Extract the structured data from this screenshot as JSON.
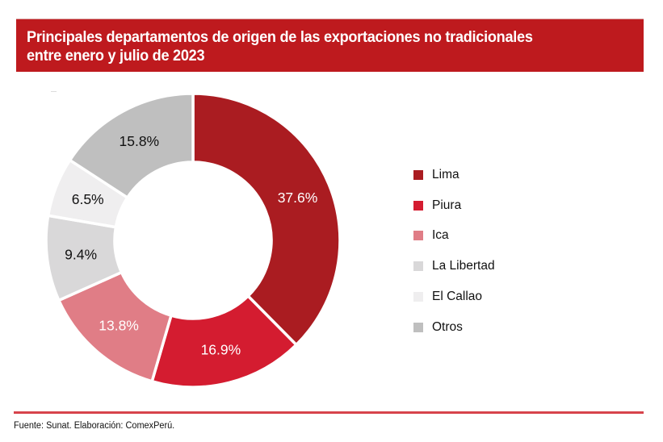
{
  "header": {
    "title": "Principales departamentos de origen de las exportaciones no tradicionales\nentre enero y julio de 2023"
  },
  "footer": {
    "source": "Fuente: Sunat. Elaboración: ComexPerú."
  },
  "chart_data": {
    "type": "pie",
    "variant": "donut",
    "title": "Principales departamentos de origen de las exportaciones no tradicionales entre enero y julio de 2023",
    "unit": "%",
    "start": "12 o'clock",
    "direction": "clockwise",
    "legend_position": "right",
    "slices": [
      {
        "label": "Lima",
        "value": 37.6,
        "display": "37.6%",
        "color": "#AA1C21",
        "label_color": "#ffffff"
      },
      {
        "label": "Piura",
        "value": 16.9,
        "display": "16.9%",
        "color": "#D41C30",
        "label_color": "#ffffff"
      },
      {
        "label": "Ica",
        "value": 13.8,
        "display": "13.8%",
        "color": "#E07D86",
        "label_color": "#ffffff"
      },
      {
        "label": "La Libertad",
        "value": 9.4,
        "display": "9.4%",
        "color": "#D9D8D9",
        "label_color": "#111111"
      },
      {
        "label": "El Callao",
        "value": 6.5,
        "display": "6.5%",
        "color": "#EFEEEF",
        "label_color": "#111111"
      },
      {
        "label": "Otros",
        "value": 15.8,
        "display": "15.8%",
        "color": "#BFBFBF",
        "label_color": "#111111"
      }
    ]
  }
}
